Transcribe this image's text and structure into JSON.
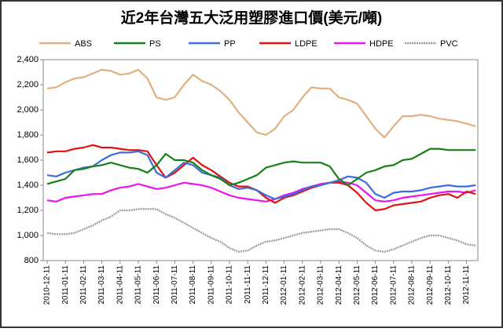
{
  "chart_data": {
    "type": "line",
    "title": "近2年台灣五大泛用塑膠進口價(美元/噸)",
    "categories": [
      "2010-12-11",
      null,
      "2011-01-11",
      null,
      "2011-02-11",
      null,
      "2011-03-11",
      null,
      "2011-04-11",
      null,
      "2011-05-11",
      null,
      "2011-06-11",
      null,
      "2011-07-11",
      null,
      "2011-08-11",
      null,
      "2011-09-11",
      null,
      "2011-10-11",
      null,
      "2011-11-11",
      null,
      "2011-12-11",
      null,
      "2012-01-11",
      null,
      "2012-02-11",
      null,
      "2012-03-11",
      null,
      "2012-04-11",
      null,
      "2012-05-11",
      null,
      "2012-06-11",
      null,
      "2012-07-11",
      null,
      "2012-08-11",
      null,
      "2012-09-11",
      null,
      "2012-10-11",
      null,
      "2012-11-11",
      null
    ],
    "series": [
      {
        "name": "ABS",
        "color": "#e0b07e",
        "values": [
          2170,
          2180,
          2220,
          2250,
          2260,
          2290,
          2320,
          2310,
          2280,
          2290,
          2320,
          2250,
          2100,
          2080,
          2100,
          2200,
          2280,
          2230,
          2200,
          2150,
          2080,
          1980,
          1900,
          1820,
          1800,
          1850,
          1950,
          2000,
          2100,
          2180,
          2170,
          2170,
          2100,
          2080,
          2050,
          1950,
          1850,
          1780,
          1870,
          1950,
          1950,
          1960,
          1950,
          1930,
          1920,
          1910,
          1890,
          1870
        ]
      },
      {
        "name": "PS",
        "color": "#17801a",
        "values": [
          1410,
          1430,
          1450,
          1520,
          1530,
          1550,
          1560,
          1580,
          1560,
          1540,
          1530,
          1500,
          1560,
          1650,
          1600,
          1600,
          1580,
          1520,
          1480,
          1450,
          1400,
          1420,
          1450,
          1480,
          1540,
          1560,
          1580,
          1590,
          1580,
          1580,
          1580,
          1550,
          1450,
          1400,
          1450,
          1500,
          1520,
          1550,
          1560,
          1600,
          1610,
          1650,
          1690,
          1690,
          1680,
          1680,
          1680,
          1680
        ]
      },
      {
        "name": "PP",
        "color": "#3b6ddb",
        "values": [
          1480,
          1470,
          1500,
          1520,
          1540,
          1550,
          1600,
          1640,
          1660,
          1660,
          1670,
          1640,
          1500,
          1460,
          1520,
          1580,
          1560,
          1500,
          1480,
          1460,
          1400,
          1370,
          1380,
          1360,
          1320,
          1290,
          1310,
          1330,
          1360,
          1390,
          1400,
          1420,
          1440,
          1470,
          1460,
          1420,
          1330,
          1300,
          1340,
          1350,
          1350,
          1360,
          1380,
          1390,
          1400,
          1390,
          1390,
          1400
        ]
      },
      {
        "name": "LDPE",
        "color": "#e01212",
        "values": [
          1660,
          1670,
          1670,
          1690,
          1700,
          1720,
          1700,
          1700,
          1690,
          1680,
          1680,
          1670,
          1560,
          1460,
          1500,
          1560,
          1620,
          1560,
          1520,
          1470,
          1420,
          1390,
          1390,
          1360,
          1300,
          1260,
          1300,
          1320,
          1350,
          1380,
          1400,
          1420,
          1420,
          1400,
          1340,
          1260,
          1200,
          1210,
          1240,
          1250,
          1260,
          1270,
          1300,
          1320,
          1330,
          1300,
          1350,
          1330
        ]
      },
      {
        "name": "HDPE",
        "color": "#ec14ec",
        "values": [
          1280,
          1270,
          1300,
          1310,
          1320,
          1330,
          1330,
          1360,
          1380,
          1390,
          1410,
          1390,
          1370,
          1380,
          1400,
          1420,
          1410,
          1400,
          1380,
          1350,
          1320,
          1300,
          1290,
          1280,
          1270,
          1290,
          1320,
          1340,
          1370,
          1390,
          1410,
          1420,
          1430,
          1420,
          1400,
          1340,
          1280,
          1270,
          1280,
          1300,
          1310,
          1320,
          1330,
          1340,
          1350,
          1350,
          1340,
          1360
        ]
      },
      {
        "name": "PVC",
        "color": "#9a9a9a",
        "dash": "2,1",
        "values": [
          1020,
          1010,
          1010,
          1020,
          1050,
          1080,
          1120,
          1150,
          1200,
          1200,
          1210,
          1210,
          1210,
          1170,
          1140,
          1100,
          1060,
          1020,
          980,
          950,
          900,
          870,
          880,
          920,
          950,
          960,
          980,
          1000,
          1020,
          1030,
          1040,
          1050,
          1050,
          1020,
          980,
          920,
          880,
          870,
          890,
          920,
          950,
          980,
          1000,
          1000,
          980,
          960,
          930,
          920
        ]
      }
    ],
    "ylim": [
      800,
      2400
    ],
    "yticks": [
      800,
      {
        "value": 1000,
        "label": "1,000"
      },
      {
        "value": 1200,
        "label": "1,200"
      },
      {
        "value": 1400,
        "label": "1,400"
      },
      {
        "value": 1600,
        "label": "1,600"
      },
      {
        "value": 1800,
        "label": "1,800"
      },
      {
        "value": 2000,
        "label": "2,000"
      },
      {
        "value": 2200,
        "label": "2,200"
      },
      {
        "value": 2400,
        "label": "2,400"
      }
    ],
    "grid": false
  }
}
